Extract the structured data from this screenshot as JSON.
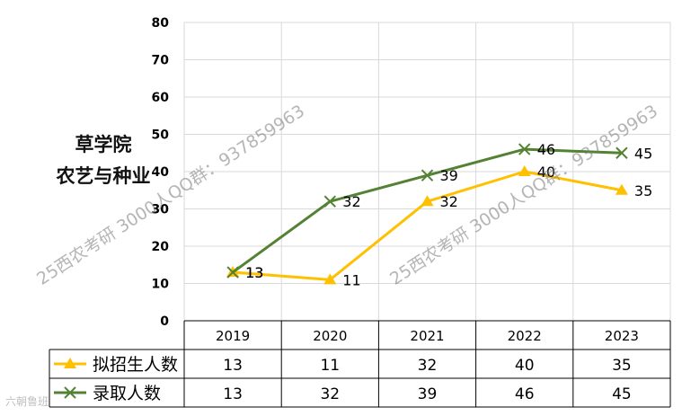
{
  "side_title": {
    "line1": "草学院",
    "line2": "农艺与种业"
  },
  "watermark": "25西农考研 3000人QQ群：937859963",
  "corner_logo": "六朝鲁班",
  "colors": {
    "plan": "#FFC000",
    "admit": "#548235",
    "grid": "#D9D9D9",
    "axis": "#000000"
  },
  "chart_data": {
    "type": "line",
    "categories": [
      "2019",
      "2020",
      "2021",
      "2022",
      "2023"
    ],
    "ylim": [
      0,
      80
    ],
    "yticks": [
      0,
      10,
      20,
      30,
      40,
      50,
      60,
      70,
      80
    ],
    "grid": true,
    "series": [
      {
        "name": "拟招生人数",
        "values": [
          13,
          11,
          32,
          40,
          35
        ],
        "marker": "triangle"
      },
      {
        "name": "录取人数",
        "values": [
          13,
          32,
          39,
          46,
          45
        ],
        "marker": "x"
      }
    ],
    "legend": "data-table"
  }
}
